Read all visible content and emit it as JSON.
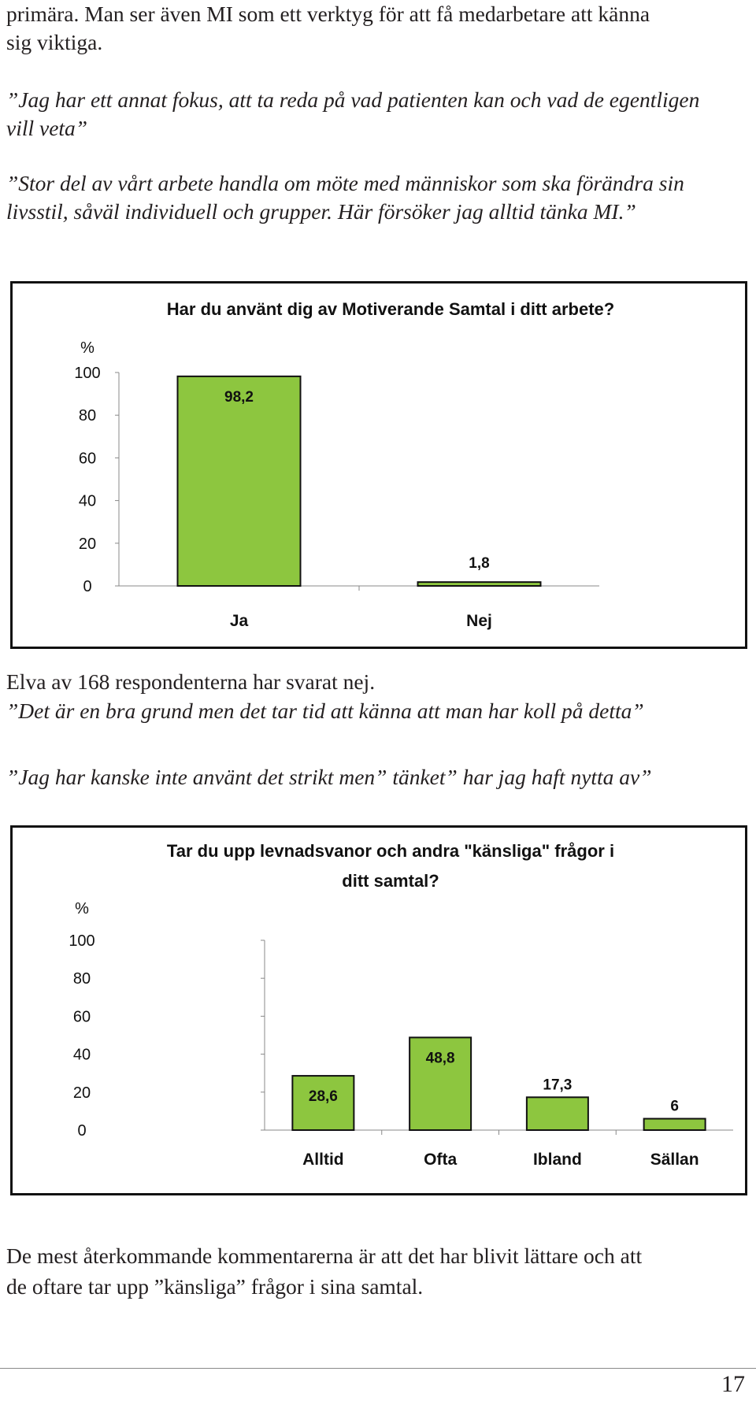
{
  "paragraphs": {
    "intro_line1": "primära. Man ser även MI som ett verktyg för att få medarbetare att känna",
    "intro_line2": "sig viktiga.",
    "quote1_line1": "”Jag har ett annat fokus, att ta reda på vad patienten kan och vad de egentligen",
    "quote1_line2": "vill veta”",
    "quote2_line1": "”Stor del av vårt arbete handla om möte med människor som ska förändra sin",
    "quote2_line2": "livsstil, såväl individuell och grupper. Här försöker jag alltid tänka MI.”",
    "middle_text": "Elva av 168 respondenterna har svarat nej.",
    "quote3": "”Det är en bra grund men det tar tid att känna att man har koll på detta”",
    "quote4": "”Jag har kanske inte använt det strikt men” tänket” har jag haft nytta av”",
    "outro_line1": "De mest återkommande kommentarerna är att det har blivit lättare och att",
    "outro_line2": "de oftare tar upp ”känsliga” frågor i sina samtal."
  },
  "page_number": "17",
  "colors": {
    "bar_fill": "#8dc63f",
    "bar_stroke": "#111111",
    "frame": "#111111",
    "text": "#231f20"
  },
  "chart_data": [
    {
      "type": "bar",
      "title": "Har du använt dig av Motiverande Samtal i ditt arbete?",
      "ylabel": "%",
      "xlabel": "",
      "categories": [
        "Ja",
        "Nej"
      ],
      "values": [
        98.2,
        1.8
      ],
      "value_labels": [
        "98,2",
        "1,8"
      ],
      "ylim": [
        0,
        100
      ],
      "yticks": [
        "0",
        "20",
        "40",
        "60",
        "80",
        "100"
      ],
      "grid": false,
      "legend": "none"
    },
    {
      "type": "bar",
      "title_lines": [
        "Tar du upp levnadsvanor och andra \"känsliga\" frågor i",
        "ditt samtal?"
      ],
      "ylabel": "%",
      "xlabel": "",
      "categories": [
        "Alltid",
        "Ofta",
        "Ibland",
        "Sällan"
      ],
      "values": [
        28.6,
        48.8,
        17.3,
        6
      ],
      "value_labels": [
        "28,6",
        "48,8",
        "17,3",
        "6"
      ],
      "ylim": [
        0,
        100
      ],
      "yticks": [
        "0",
        "20",
        "40",
        "60",
        "80",
        "100"
      ],
      "grid": false,
      "legend": "none"
    }
  ]
}
